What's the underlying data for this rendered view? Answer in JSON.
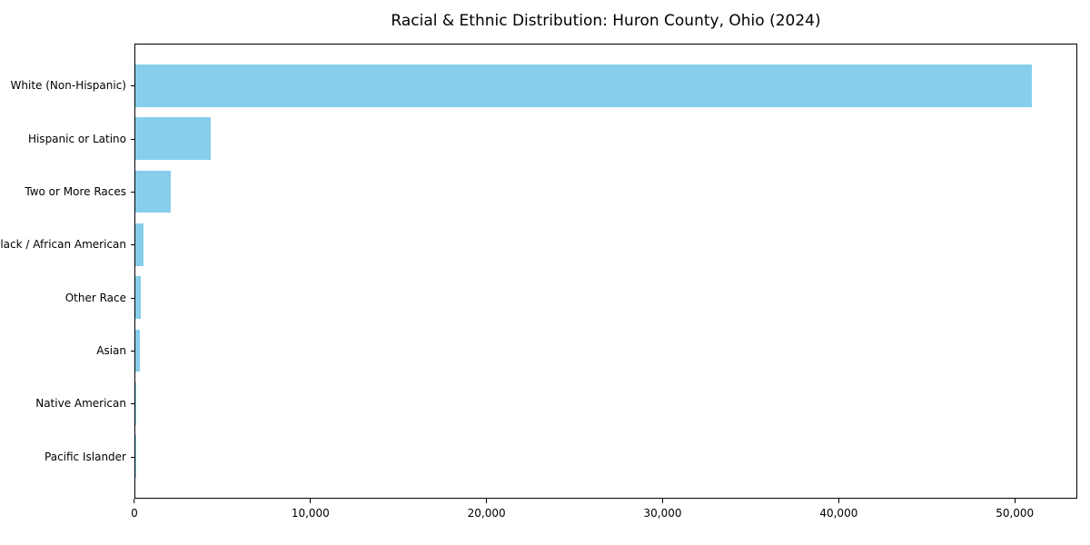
{
  "title": "Racial & Ethnic Distribution: Huron County, Ohio (2024)",
  "colors": {
    "bar": "#87ceeb",
    "axis": "#000000",
    "text": "#000000",
    "background": "#ffffff"
  },
  "chart_data": {
    "type": "bar",
    "orientation": "horizontal",
    "title": "Racial & Ethnic Distribution: Huron County, Ohio (2024)",
    "categories": [
      "White (Non-Hispanic)",
      "Hispanic or Latino",
      "Two or More Races",
      "Black / African American",
      "Other Race",
      "Asian",
      "Native American",
      "Pacific Islander"
    ],
    "values": [
      51000,
      4300,
      2000,
      450,
      310,
      250,
      50,
      10
    ],
    "xlabel": "",
    "ylabel": "",
    "xlim": [
      0,
      53550
    ],
    "x_ticks": [
      {
        "value": 0,
        "label": "0"
      },
      {
        "value": 10000,
        "label": "10,000"
      },
      {
        "value": 20000,
        "label": "20,000"
      },
      {
        "value": 30000,
        "label": "30,000"
      },
      {
        "value": 40000,
        "label": "40,000"
      },
      {
        "value": 50000,
        "label": "50,000"
      }
    ],
    "grid": false,
    "legend": null,
    "bar_color": "#87ceeb"
  }
}
